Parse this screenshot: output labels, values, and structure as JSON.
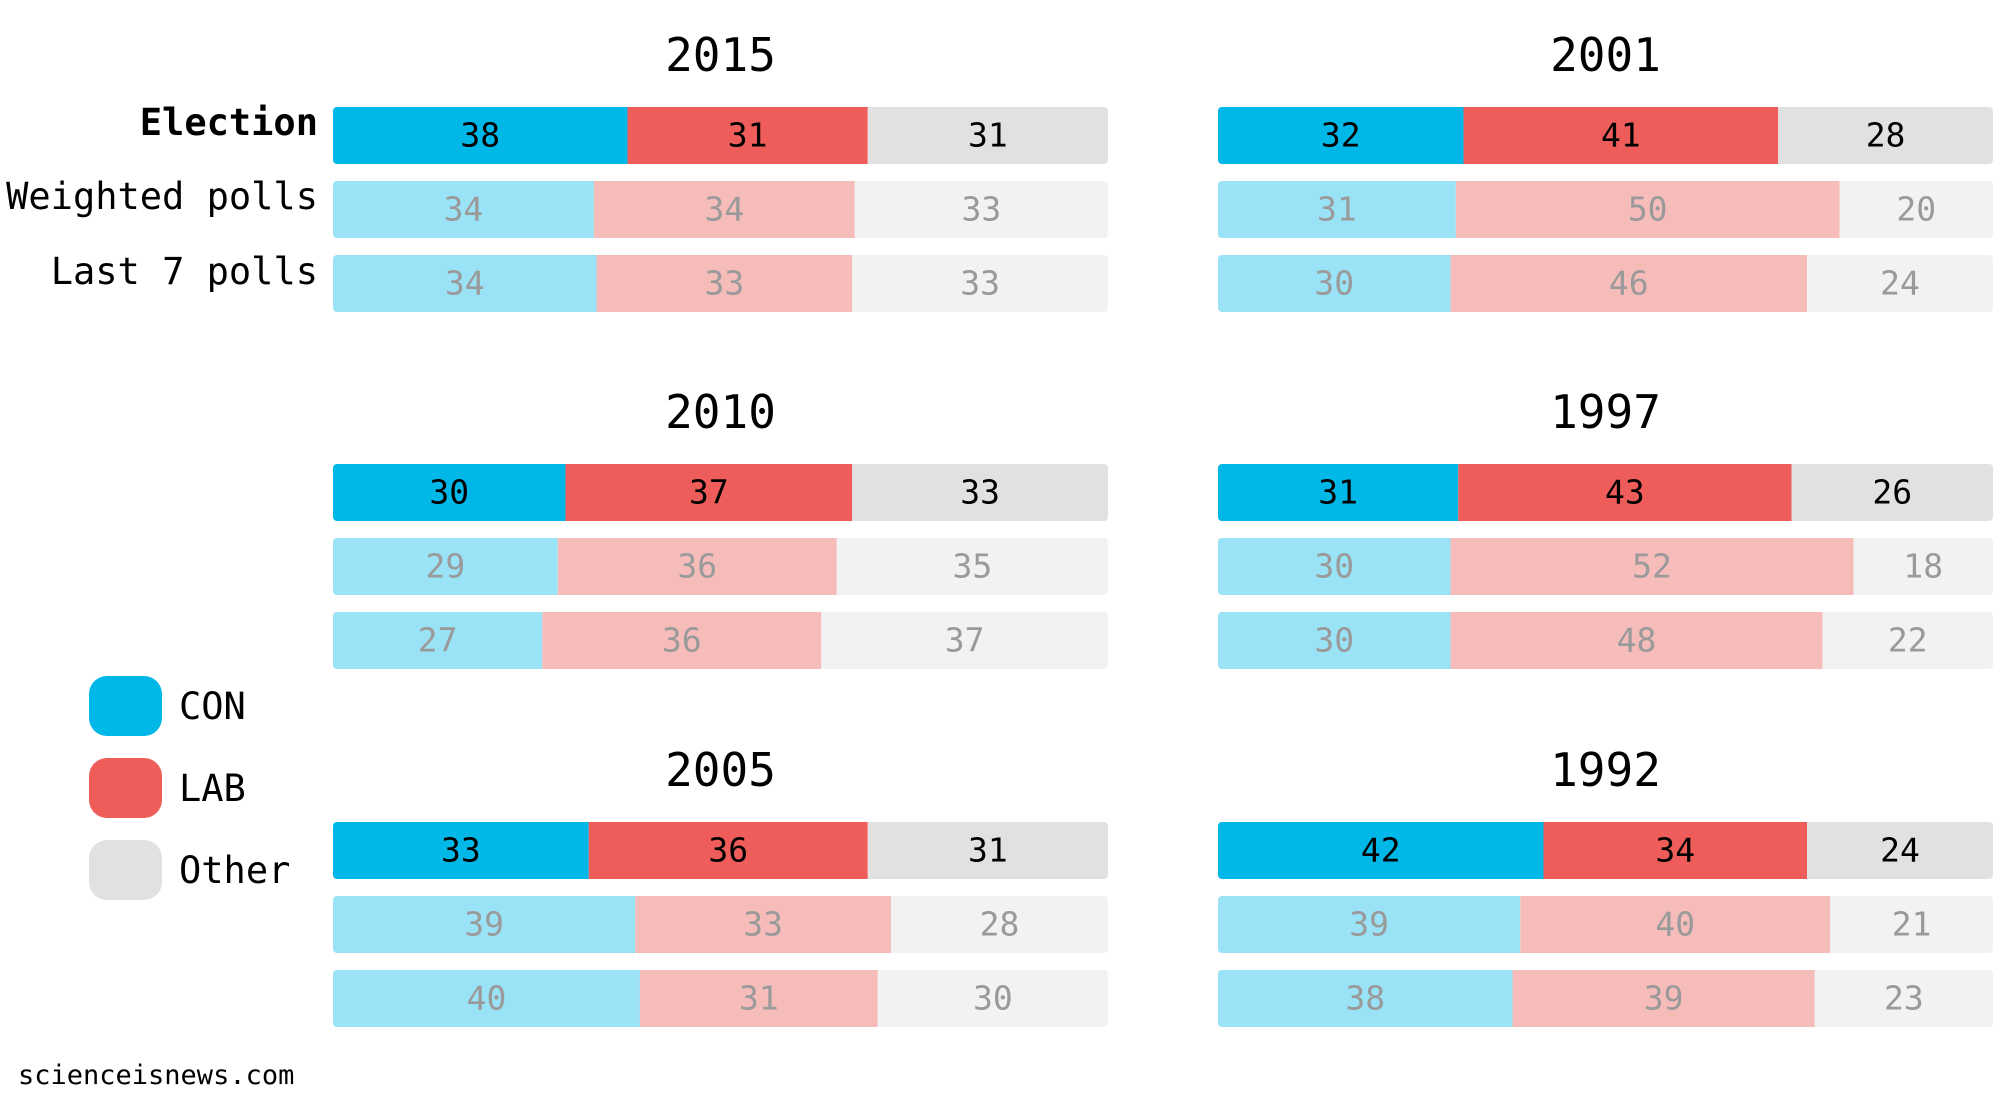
{
  "chart_data": {
    "type": "bar",
    "stacked": true,
    "orientation": "horizontal",
    "row_labels": [
      "Election",
      "Weighted polls",
      "Last 7 polls"
    ],
    "parties": [
      {
        "name": "CON",
        "color": "#00b8e8",
        "muted_color": "#9ae2f5"
      },
      {
        "name": "LAB",
        "color": "#ee5d59",
        "muted_color": "#f6bcba"
      },
      {
        "name": "Other",
        "color": "#e1e1e1",
        "muted_color": "#f2f2f2"
      }
    ],
    "panels": [
      {
        "title": "2015",
        "rows": [
          [
            38,
            31,
            31
          ],
          [
            34,
            34,
            33
          ],
          [
            34,
            33,
            33
          ]
        ]
      },
      {
        "title": "2001",
        "rows": [
          [
            32,
            41,
            28
          ],
          [
            31,
            50,
            20
          ],
          [
            30,
            46,
            24
          ]
        ]
      },
      {
        "title": "2010",
        "rows": [
          [
            30,
            37,
            33
          ],
          [
            29,
            36,
            35
          ],
          [
            27,
            36,
            37
          ]
        ]
      },
      {
        "title": "1997",
        "rows": [
          [
            31,
            43,
            26
          ],
          [
            30,
            52,
            18
          ],
          [
            30,
            48,
            22
          ]
        ]
      },
      {
        "title": "2005",
        "rows": [
          [
            33,
            36,
            31
          ],
          [
            39,
            33,
            28
          ],
          [
            40,
            31,
            30
          ]
        ]
      },
      {
        "title": "1992",
        "rows": [
          [
            42,
            34,
            24
          ],
          [
            39,
            40,
            21
          ],
          [
            38,
            39,
            23
          ]
        ]
      }
    ],
    "legend": {
      "position": "left",
      "entries": [
        "CON",
        "LAB",
        "Other"
      ]
    },
    "source": "scienceisnews.com"
  }
}
